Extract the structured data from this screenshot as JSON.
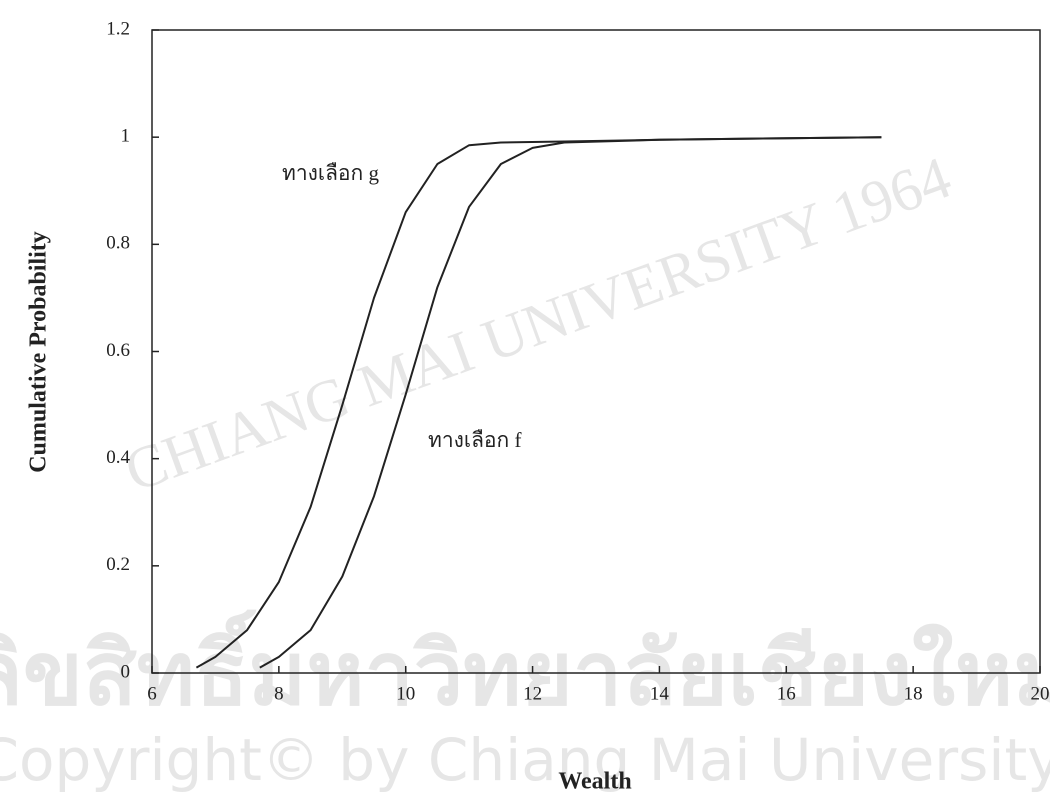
{
  "chart_data": {
    "type": "line",
    "xlabel": "Wealth",
    "ylabel": "Cumulative Probability",
    "xlim": [
      6,
      20
    ],
    "ylim": [
      0,
      1.2
    ],
    "xticks": [
      6,
      8,
      10,
      12,
      14,
      16,
      18,
      20
    ],
    "yticks": [
      0,
      0.2,
      0.4,
      0.6,
      0.8,
      1,
      1.2
    ],
    "grid": false,
    "series": [
      {
        "name": "ทางเลือก g",
        "color": "#222222",
        "x": [
          6.7,
          7,
          7.5,
          8,
          8.5,
          9,
          9.5,
          10,
          10.5,
          11,
          11.5,
          12.5,
          14,
          16,
          17.5
        ],
        "values": [
          0.01,
          0.03,
          0.08,
          0.17,
          0.31,
          0.5,
          0.7,
          0.86,
          0.95,
          0.985,
          0.99,
          0.992,
          0.995,
          0.998,
          1.0
        ]
      },
      {
        "name": "ทางเลือก f",
        "color": "#222222",
        "x": [
          7.7,
          8,
          8.5,
          9,
          9.5,
          10,
          10.5,
          11,
          11.5,
          12,
          12.5,
          14,
          16,
          17.5
        ],
        "values": [
          0.01,
          0.03,
          0.08,
          0.18,
          0.33,
          0.52,
          0.72,
          0.87,
          0.95,
          0.98,
          0.99,
          0.995,
          0.998,
          1.0
        ]
      }
    ],
    "watermark": [
      "ลิขสิทธิ์มหาวิทยาลัยเชียงใหม่",
      "Copyright© by Chiang Mai University",
      "CHIANG MAI UNIVERSITY 1964"
    ]
  }
}
